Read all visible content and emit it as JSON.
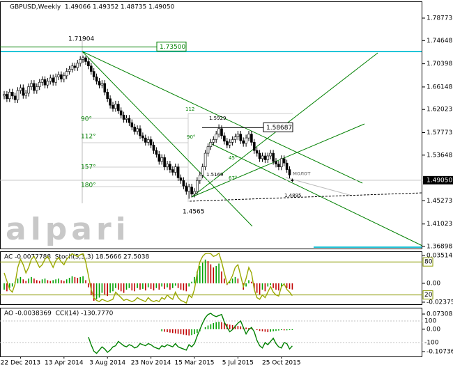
{
  "chart_data": [
    {
      "type": "candlestick",
      "title": "GBPUSD,Weekly  1.49066 1.49352 1.48735 1.49050",
      "watermark": "alpari",
      "categories": [
        null,
        null,
        null,
        null,
        null,
        null,
        "22 Dec 2013",
        null,
        null,
        null,
        null,
        null,
        null,
        null,
        null,
        null,
        null,
        null,
        null,
        null,
        null,
        null,
        "13 Apr 2014",
        null,
        null,
        null,
        null,
        null,
        null,
        null,
        null,
        null,
        null,
        null,
        null,
        null,
        null,
        null,
        "3 Aug 2014",
        null,
        null,
        null,
        null,
        null,
        null,
        null,
        null,
        null,
        null,
        null,
        null,
        null,
        null,
        null,
        "23 Nov 2014",
        null,
        null,
        null,
        null,
        null,
        null,
        null,
        null,
        null,
        null,
        null,
        null,
        null,
        null,
        null,
        "15 Mar 2015",
        null,
        null,
        null,
        null,
        null,
        null,
        null,
        null,
        null,
        null,
        null,
        null,
        null,
        null,
        null,
        "5 Jul 2015",
        null,
        null,
        null,
        null,
        null,
        null,
        null,
        null,
        null,
        null,
        null,
        null,
        null,
        null,
        null,
        "25 Oct 2015",
        null,
        null,
        null,
        null
      ],
      "open": [
        1.645,
        1.648,
        1.64,
        1.652,
        1.645,
        1.638,
        1.655,
        1.66,
        1.646,
        1.65,
        1.662,
        1.668,
        1.655,
        1.662,
        1.67,
        1.675,
        1.665,
        1.672,
        1.678,
        1.67,
        1.68,
        1.684,
        1.676,
        1.682,
        1.69,
        1.694,
        1.7,
        1.697,
        1.705,
        1.712,
        1.715,
        1.708,
        1.7,
        1.69,
        1.68,
        1.672,
        1.665,
        1.668,
        1.652,
        1.64,
        1.628,
        1.622,
        1.63,
        1.618,
        1.61,
        1.602,
        1.604,
        1.596,
        1.588,
        1.58,
        1.585,
        1.572,
        1.568,
        1.56,
        1.565,
        1.555,
        1.545,
        1.538,
        1.525,
        1.532,
        1.515,
        1.52,
        1.51,
        1.505,
        1.515,
        1.495,
        1.49,
        1.48,
        1.47,
        1.478,
        1.465,
        1.47,
        1.49,
        1.5,
        1.515,
        1.54,
        1.552,
        1.56,
        1.565,
        1.575,
        1.585,
        1.572,
        1.562,
        1.555,
        1.56,
        1.565,
        1.57,
        1.575,
        1.563,
        1.558,
        1.568,
        1.575,
        1.56,
        1.545,
        1.54,
        1.53,
        1.535,
        1.528,
        1.535,
        1.54,
        1.525,
        1.52,
        1.515,
        1.53,
        1.522,
        1.51,
        1.49066
      ],
      "high": [
        1.654,
        1.654,
        1.658,
        1.658,
        1.651,
        1.661,
        1.666,
        1.666,
        1.656,
        1.668,
        1.674,
        1.674,
        1.668,
        1.676,
        1.681,
        1.681,
        1.678,
        1.684,
        1.684,
        1.686,
        1.69,
        1.69,
        1.688,
        1.696,
        1.7,
        1.706,
        1.706,
        1.711,
        1.718,
        1.71904,
        1.718,
        1.714,
        1.706,
        1.696,
        1.686,
        1.678,
        1.674,
        1.674,
        1.658,
        1.646,
        1.634,
        1.636,
        1.636,
        1.624,
        1.616,
        1.61,
        1.61,
        1.602,
        1.594,
        1.591,
        1.591,
        1.578,
        1.574,
        1.571,
        1.571,
        1.561,
        1.551,
        1.544,
        1.538,
        1.538,
        1.526,
        1.526,
        1.516,
        1.521,
        1.521,
        1.501,
        1.496,
        1.486,
        1.484,
        1.484,
        1.476,
        1.496,
        1.506,
        1.521,
        1.546,
        1.558,
        1.566,
        1.571,
        1.581,
        1.5929,
        1.591,
        1.578,
        1.568,
        1.566,
        1.571,
        1.576,
        1.581,
        1.581,
        1.569,
        1.574,
        1.581,
        1.581,
        1.566,
        1.551,
        1.546,
        1.541,
        1.541,
        1.541,
        1.546,
        1.546,
        1.531,
        1.526,
        1.536,
        1.536,
        1.528,
        1.516,
        1.49352
      ],
      "low": [
        1.639,
        1.634,
        1.634,
        1.639,
        1.632,
        1.632,
        1.649,
        1.64,
        1.64,
        1.644,
        1.656,
        1.649,
        1.649,
        1.656,
        1.664,
        1.659,
        1.659,
        1.666,
        1.664,
        1.664,
        1.674,
        1.67,
        1.67,
        1.676,
        1.684,
        1.688,
        1.691,
        1.691,
        1.699,
        1.706,
        1.702,
        1.694,
        1.684,
        1.674,
        1.666,
        1.659,
        1.659,
        1.646,
        1.634,
        1.622,
        1.616,
        1.616,
        1.612,
        1.604,
        1.596,
        1.596,
        1.59,
        1.582,
        1.574,
        1.574,
        1.566,
        1.562,
        1.554,
        1.554,
        1.549,
        1.539,
        1.532,
        1.519,
        1.519,
        1.509,
        1.509,
        1.504,
        1.499,
        1.499,
        1.489,
        1.484,
        1.474,
        1.464,
        1.4565,
        1.459,
        1.459,
        1.464,
        1.484,
        1.494,
        1.509,
        1.534,
        1.546,
        1.554,
        1.559,
        1.569,
        1.566,
        1.556,
        1.549,
        1.549,
        1.554,
        1.559,
        1.564,
        1.557,
        1.552,
        1.552,
        1.562,
        1.554,
        1.539,
        1.534,
        1.524,
        1.524,
        1.522,
        1.522,
        1.529,
        1.519,
        1.514,
        1.509,
        1.509,
        1.516,
        1.504,
        1.494,
        1.48735
      ],
      "close": [
        1.648,
        1.64,
        1.652,
        1.645,
        1.638,
        1.655,
        1.66,
        1.646,
        1.65,
        1.662,
        1.668,
        1.655,
        1.662,
        1.67,
        1.675,
        1.665,
        1.672,
        1.678,
        1.67,
        1.68,
        1.684,
        1.676,
        1.682,
        1.69,
        1.694,
        1.7,
        1.697,
        1.705,
        1.712,
        1.715,
        1.708,
        1.7,
        1.69,
        1.68,
        1.672,
        1.665,
        1.668,
        1.652,
        1.64,
        1.628,
        1.622,
        1.63,
        1.618,
        1.61,
        1.602,
        1.604,
        1.596,
        1.588,
        1.58,
        1.585,
        1.572,
        1.568,
        1.56,
        1.565,
        1.555,
        1.545,
        1.538,
        1.525,
        1.532,
        1.515,
        1.52,
        1.51,
        1.505,
        1.515,
        1.495,
        1.49,
        1.48,
        1.47,
        1.478,
        1.465,
        1.47,
        1.49,
        1.5,
        1.515,
        1.54,
        1.552,
        1.56,
        1.565,
        1.575,
        1.585,
        1.572,
        1.562,
        1.555,
        1.56,
        1.565,
        1.57,
        1.575,
        1.563,
        1.558,
        1.568,
        1.575,
        1.56,
        1.545,
        1.54,
        1.53,
        1.535,
        1.528,
        1.535,
        1.54,
        1.525,
        1.52,
        1.515,
        1.53,
        1.522,
        1.51,
        1.5,
        1.4905
      ],
      "ylim": [
        1.3652,
        1.8171
      ],
      "yticks": [
        1.78773,
        1.74648,
        1.70398,
        1.66148,
        1.62023,
        1.57773,
        1.53648,
        1.45273,
        1.41023,
        1.36898
      ],
      "current_price": {
        "value": 1.4905,
        "label": "1.49050"
      },
      "levels": [
        {
          "value": 1.735,
          "label": "1.73500",
          "color": "#008000"
        },
        {
          "value": 1.58687,
          "label": "1.58687",
          "color": "#000000"
        }
      ],
      "annotations": [
        "1.71904",
        "90°",
        "112°",
        "157°",
        "180°",
        "112",
        "1.5929",
        "90°",
        "45°",
        "1.5169",
        "67°",
        "молот",
        "1.4895",
        "1.4565"
      ]
    },
    {
      "type": "oscillator",
      "title": "AC -0.0077788  Stoch(5,3,3) 18.5666 27.5038",
      "bars": {
        "up_color": "#00a000",
        "down_color": "#c00000",
        "values": [
          -0.008,
          -0.01,
          -0.006,
          -0.004,
          0.002,
          0.006,
          0.008,
          0.005,
          0.003,
          0.006,
          0.008,
          0.006,
          0.004,
          0.003,
          0.005,
          0.006,
          0.004,
          0.003,
          0.004,
          0.005,
          0.006,
          0.004,
          0.003,
          0.005,
          0.007,
          0.009,
          0.008,
          0.007,
          0.008,
          0.009,
          0.004,
          -0.005,
          -0.015,
          -0.022,
          -0.02,
          -0.018,
          -0.012,
          -0.014,
          -0.016,
          -0.012,
          -0.01,
          -0.006,
          -0.008,
          -0.01,
          -0.012,
          -0.008,
          -0.006,
          -0.009,
          -0.01,
          -0.006,
          -0.008,
          -0.007,
          -0.009,
          -0.005,
          -0.007,
          -0.009,
          -0.006,
          -0.008,
          -0.004,
          -0.007,
          -0.005,
          -0.008,
          -0.006,
          -0.003,
          -0.006,
          -0.008,
          -0.009,
          -0.01,
          -0.004,
          0.002,
          0.008,
          0.015,
          0.022,
          0.026,
          0.03,
          0.028,
          0.024,
          0.02,
          0.022,
          0.025,
          0.015,
          0.006,
          -0.002,
          0.002,
          0.006,
          0.008,
          0.006,
          0,
          -0.008,
          -0.004,
          0.004,
          0.002,
          -0.008,
          -0.012,
          -0.014,
          -0.008,
          -0.01,
          -0.004,
          -0.002,
          -0.006,
          -0.008,
          -0.009,
          -0.004,
          -0.002,
          -0.006,
          -0.007,
          -0.0077788
        ]
      },
      "line": {
        "color": "#9aa800",
        "axis": "y2",
        "values": [
          60,
          45,
          30,
          25,
          40,
          70,
          85,
          75,
          60,
          70,
          85,
          90,
          80,
          70,
          75,
          85,
          90,
          80,
          70,
          82,
          88,
          80,
          75,
          85,
          90,
          95,
          92,
          90,
          93,
          95,
          80,
          55,
          30,
          15,
          10,
          8,
          12,
          10,
          8,
          10,
          12,
          25,
          20,
          15,
          10,
          12,
          10,
          8,
          10,
          15,
          12,
          10,
          8,
          15,
          10,
          8,
          10,
          8,
          15,
          12,
          20,
          15,
          12,
          25,
          15,
          10,
          8,
          5,
          20,
          15,
          30,
          60,
          80,
          90,
          95,
          96,
          95,
          90,
          92,
          96,
          80,
          60,
          40,
          45,
          55,
          70,
          75,
          55,
          35,
          50,
          70,
          60,
          30,
          15,
          12,
          20,
          15,
          25,
          35,
          25,
          20,
          18,
          35,
          40,
          30,
          25,
          18.5666
        ]
      },
      "ylim": [
        -0.0264,
        0.0395
      ],
      "yticks": [
        0.035145,
        {
          "value": 0,
          "label": "0.00"
        },
        -0.023755
      ],
      "y2lim": [
        3,
        98
      ],
      "y2ticks": [
        80,
        20
      ]
    },
    {
      "type": "oscillator",
      "title": "AO -0.0038369  CCI(14) -130.7770",
      "bars": {
        "up_color": "#00a000",
        "down_color": "#c00000",
        "values": [
          null,
          null,
          null,
          null,
          null,
          null,
          null,
          null,
          null,
          null,
          null,
          null,
          null,
          null,
          null,
          null,
          null,
          null,
          null,
          null,
          null,
          null,
          null,
          null,
          null,
          null,
          null,
          null,
          null,
          null,
          null,
          null,
          null,
          null,
          null,
          null,
          null,
          null,
          null,
          null,
          null,
          null,
          null,
          null,
          null,
          null,
          null,
          null,
          null,
          null,
          null,
          null,
          null,
          null,
          null,
          null,
          null,
          null,
          -0.01,
          -0.012,
          -0.014,
          -0.016,
          -0.018,
          -0.02,
          -0.022,
          -0.024,
          -0.026,
          -0.028,
          -0.03,
          -0.028,
          -0.024,
          -0.018,
          -0.01,
          0,
          0.01,
          0.018,
          0.024,
          0.03,
          0.034,
          0.036,
          0.034,
          0.03,
          0.026,
          0.022,
          0.02,
          0.018,
          0.016,
          0.014,
          0.01,
          0.008,
          0.006,
          0.004,
          0,
          -0.004,
          -0.008,
          -0.01,
          -0.012,
          -0.014,
          -0.012,
          -0.01,
          -0.008,
          -0.006,
          -0.004,
          -0.005,
          -0.005,
          -0.004,
          -0.0038369
        ]
      },
      "line": {
        "color": "#008000",
        "axis": "y2",
        "values": [
          null,
          null,
          null,
          null,
          null,
          null,
          null,
          null,
          null,
          null,
          null,
          null,
          null,
          null,
          null,
          null,
          null,
          null,
          null,
          null,
          null,
          null,
          null,
          null,
          null,
          null,
          null,
          null,
          null,
          null,
          null,
          -50,
          -120,
          -180,
          -200,
          -170,
          -140,
          -160,
          -190,
          -170,
          -140,
          -130,
          -90,
          -110,
          -130,
          -140,
          -120,
          -130,
          -150,
          -140,
          -110,
          -120,
          -130,
          -110,
          -120,
          -140,
          -150,
          -160,
          -130,
          -140,
          -120,
          -130,
          -140,
          -110,
          -140,
          -150,
          -160,
          -170,
          -120,
          -140,
          -110,
          -40,
          20,
          80,
          130,
          160,
          170,
          150,
          140,
          150,
          160,
          90,
          40,
          0,
          20,
          50,
          80,
          100,
          40,
          -20,
          20,
          40,
          0,
          -80,
          -130,
          -150,
          -100,
          -120,
          -90,
          -60,
          -110,
          -140,
          -150,
          -100,
          -110,
          -160,
          -130.777
        ]
      },
      "ylim": [
        -0.1308,
        0.1
      ],
      "yticks": [
        0.073085,
        {
          "value": 0,
          "label": "0.00"
        },
        -0.107361
      ],
      "y2lim": [
        -229,
        216
      ],
      "y2ticks": [
        100,
        -100
      ]
    }
  ]
}
